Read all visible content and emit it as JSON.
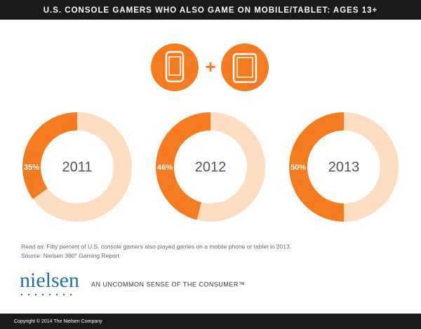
{
  "header": {
    "title": "U.S. CONSOLE GAMERS WHO ALSO GAME ON MOBILE/TABLET: AGES 13+"
  },
  "chart_data": [
    {
      "type": "donut",
      "title": "2011",
      "values": [
        35,
        65
      ],
      "value_labels": [
        "35%",
        null
      ],
      "colors": [
        "#f47b20",
        "#fddcbf"
      ]
    },
    {
      "type": "donut",
      "title": "2012",
      "values": [
        46,
        54
      ],
      "value_labels": [
        "46%",
        null
      ],
      "colors": [
        "#f47b20",
        "#fddcbf"
      ]
    },
    {
      "type": "donut",
      "title": "2013",
      "values": [
        50,
        50
      ],
      "value_labels": [
        "50%",
        null
      ],
      "colors": [
        "#f47b20",
        "#fddcbf"
      ]
    }
  ],
  "note": "Read as: Fifty percent of U.S. console gamers also played games on a mobile phone or tablet in 2013.",
  "source": "Source: Nielsen 360° Gaming Report",
  "brand": "nielsen",
  "tagline": "AN UNCOMMON SENSE OF THE CONSUMER™",
  "copyright": "Copyright © 2014 The Nielsen Company"
}
